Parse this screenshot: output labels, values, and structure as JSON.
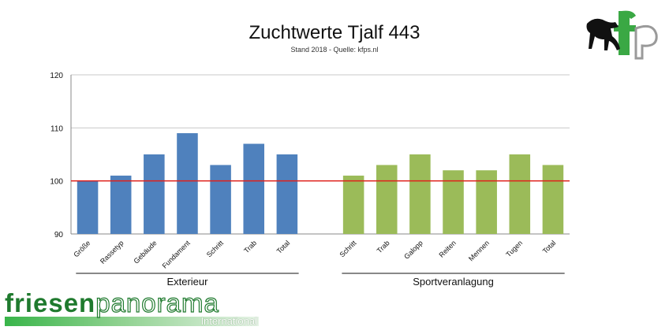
{
  "header": {
    "title": "Zuchtwerte Tjalf 443",
    "subtitle": "Stand 2018 - Quelle: kfps.nl"
  },
  "logo_top_right": {
    "icon": "kfp-horse-logo-icon",
    "text": "kfp"
  },
  "brand": {
    "name_bold": "friesen",
    "name_light": "panorama",
    "sub": "International",
    "color": "#1f7a2e"
  },
  "chart_data": {
    "type": "bar",
    "title": "Zuchtwerte Tjalf 443",
    "subtitle": "Stand 2018 - Quelle: kfps.nl",
    "ylim": [
      90,
      120
    ],
    "yticks": [
      90,
      100,
      110,
      120
    ],
    "grid": true,
    "reference_line": {
      "value": 100,
      "color": "#e0201b"
    },
    "groups": [
      {
        "name": "Exterieur",
        "color": "#4f81bd",
        "categories": [
          "Größe",
          "Rassetyp",
          "Gebäude",
          "Fundament",
          "Schritt",
          "Trab",
          "Total"
        ],
        "values": [
          100,
          101,
          105,
          109,
          103,
          107,
          105
        ]
      },
      {
        "name": "Sportveranlagung",
        "color": "#9bbb59",
        "categories": [
          "Schritt",
          "Trab",
          "Galopp",
          "Reiten",
          "Mennen",
          "Tugen",
          "Total"
        ],
        "values": [
          101,
          103,
          105,
          102,
          102,
          105,
          103
        ]
      }
    ]
  }
}
